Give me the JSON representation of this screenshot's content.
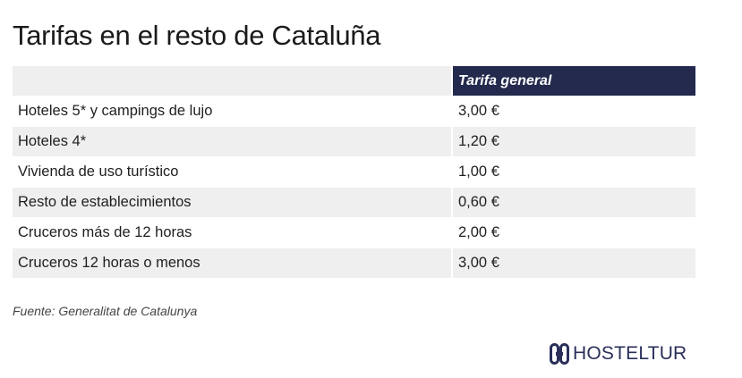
{
  "title": "Tarifas en el resto de Cataluña",
  "table": {
    "headers": [
      "",
      "Tarifa general"
    ],
    "rows": [
      {
        "name": "Hoteles 5* y campings de lujo",
        "rate": "3,00 €"
      },
      {
        "name": "Hoteles 4*",
        "rate": "1,20 €"
      },
      {
        "name": "Vivienda de uso turístico",
        "rate": "1,00 €"
      },
      {
        "name": "Resto de establecimientos",
        "rate": "0,60 €"
      },
      {
        "name": "Cruceros más de 12 horas",
        "rate": "2,00 €"
      },
      {
        "name": "Cruceros 12 horas o menos",
        "rate": "3,00 €"
      }
    ]
  },
  "source": "Fuente: Generalitat de Catalunya",
  "brand": {
    "name": "HOSTELTUR",
    "icon": "hosteltur-logo-icon",
    "color": "#2a2f5a"
  },
  "colors": {
    "header_bg": "#232a4d",
    "header_text": "#ffffff",
    "stripe": "#efefef"
  }
}
